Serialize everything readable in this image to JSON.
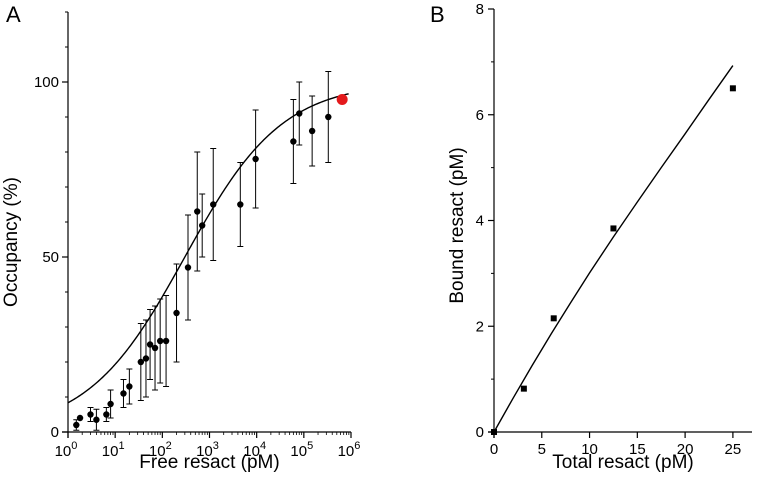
{
  "chart_data": [
    {
      "panel_label": "A",
      "type": "scatter",
      "xscale": "log",
      "xlim": [
        1,
        1000000
      ],
      "ylim": [
        0,
        120
      ],
      "xlabel": "Free resact (pM)",
      "ylabel": "Occupancy (%)",
      "xticks": [
        {
          "base": "10",
          "exp": "0",
          "value": 1
        },
        {
          "base": "10",
          "exp": "1",
          "value": 10
        },
        {
          "base": "10",
          "exp": "2",
          "value": 100
        },
        {
          "base": "10",
          "exp": "3",
          "value": 1000
        },
        {
          "base": "10",
          "exp": "4",
          "value": 10000
        },
        {
          "base": "10",
          "exp": "5",
          "value": 100000
        },
        {
          "base": "10",
          "exp": "6",
          "value": 1000000
        }
      ],
      "yticks": [
        {
          "label": "0",
          "value": 0
        },
        {
          "label": "50",
          "value": 50
        },
        {
          "label": "100",
          "value": 100
        }
      ],
      "fit": {
        "bottom": 0,
        "top": 100,
        "ec50": 300,
        "hill": 0.42
      },
      "points": [
        {
          "x": 1.5,
          "y": 2,
          "err": 1.5
        },
        {
          "x": 1.8,
          "y": 4,
          "err": 0
        },
        {
          "x": 3,
          "y": 5,
          "err": 2
        },
        {
          "x": 4,
          "y": 3.5,
          "err": 3
        },
        {
          "x": 6.5,
          "y": 5,
          "err": 2
        },
        {
          "x": 8,
          "y": 8,
          "err": 4
        },
        {
          "x": 15,
          "y": 11,
          "err": 4
        },
        {
          "x": 20,
          "y": 13,
          "err": 5
        },
        {
          "x": 35,
          "y": 20,
          "err": 11
        },
        {
          "x": 45,
          "y": 21,
          "err": 11
        },
        {
          "x": 55,
          "y": 25,
          "err": 10
        },
        {
          "x": 70,
          "y": 24,
          "err": 12
        },
        {
          "x": 90,
          "y": 26,
          "err": 12
        },
        {
          "x": 120,
          "y": 26,
          "err": 13
        },
        {
          "x": 200,
          "y": 34,
          "err": 14
        },
        {
          "x": 350,
          "y": 47,
          "err": 15
        },
        {
          "x": 550,
          "y": 63,
          "err": 17
        },
        {
          "x": 700,
          "y": 59,
          "err": 9
        },
        {
          "x": 1200,
          "y": 65,
          "err": 16
        },
        {
          "x": 4500,
          "y": 65,
          "err": 12
        },
        {
          "x": 9500,
          "y": 78,
          "err": 14
        },
        {
          "x": 60000,
          "y": 83,
          "err": 12
        },
        {
          "x": 80000,
          "y": 91,
          "err": 9
        },
        {
          "x": 150000,
          "y": 86,
          "err": 10
        },
        {
          "x": 330000,
          "y": 90,
          "err": 13
        }
      ],
      "highlight": {
        "x": 650000,
        "y": 95,
        "color": "#e41a1c"
      }
    },
    {
      "panel_label": "B",
      "type": "scatter",
      "xlim": [
        0,
        27
      ],
      "ylim": [
        0,
        8
      ],
      "xlabel": "Total resact (pM)",
      "ylabel": "Bound resact (pM)",
      "xticks": [
        {
          "label": "0",
          "value": 0
        },
        {
          "label": "5",
          "value": 5
        },
        {
          "label": "10",
          "value": 10
        },
        {
          "label": "15",
          "value": 15
        },
        {
          "label": "20",
          "value": 20
        },
        {
          "label": "25",
          "value": 25
        }
      ],
      "yticks": [
        {
          "label": "0",
          "value": 0
        },
        {
          "label": "2",
          "value": 2
        },
        {
          "label": "4",
          "value": 4
        },
        {
          "label": "6",
          "value": 6
        },
        {
          "label": "8",
          "value": 8
        }
      ],
      "points": [
        {
          "x": 0,
          "y": 0
        },
        {
          "x": 3.125,
          "y": 0.82
        },
        {
          "x": 6.25,
          "y": 2.15
        },
        {
          "x": 12.5,
          "y": 3.85
        },
        {
          "x": 25,
          "y": 6.5
        }
      ],
      "fit_curve": [
        [
          0,
          0
        ],
        [
          2,
          0.64
        ],
        [
          4,
          1.26
        ],
        [
          6,
          1.86
        ],
        [
          8,
          2.44
        ],
        [
          10,
          3.01
        ],
        [
          12.5,
          3.69
        ],
        [
          15,
          4.35
        ],
        [
          17.5,
          5.0
        ],
        [
          20,
          5.64
        ],
        [
          22.5,
          6.29
        ],
        [
          25,
          6.93
        ]
      ]
    }
  ]
}
